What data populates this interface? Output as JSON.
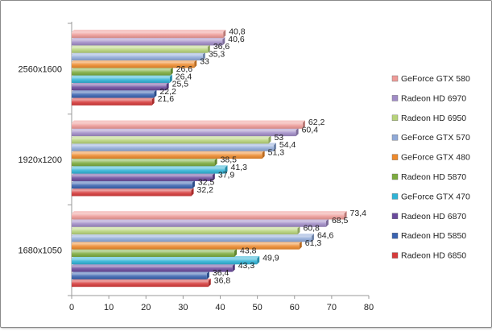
{
  "chart_data": {
    "type": "bar",
    "orientation": "horizontal",
    "title": "",
    "xlabel": "",
    "ylabel": "",
    "categories": [
      "1680x1050",
      "1920x1200",
      "2560x1600"
    ],
    "xlim": [
      0,
      80
    ],
    "xticks": [
      0,
      10,
      20,
      30,
      40,
      50,
      60,
      70,
      80
    ],
    "grid": false,
    "legend_position": "right",
    "series": [
      {
        "name": "Radeon HD 6850",
        "color": "#d63a3a",
        "labels": [
          "36,8",
          "32,2",
          "21,6"
        ],
        "values": [
          36.8,
          32.2,
          21.6
        ]
      },
      {
        "name": "Radeon HD 5850",
        "color": "#3a63b0",
        "labels": [
          "36,4",
          "32,5",
          "22,2"
        ],
        "values": [
          36.4,
          32.5,
          22.2
        ]
      },
      {
        "name": "Radeon HD 6870",
        "color": "#6a4a9c",
        "labels": [
          "43,3",
          "37,9",
          "25,5"
        ],
        "values": [
          43.3,
          37.9,
          25.5
        ]
      },
      {
        "name": "GeForce GTX 470",
        "color": "#2fb3d6",
        "labels": [
          "49,9",
          "41,3",
          "26,4"
        ],
        "values": [
          49.9,
          41.3,
          26.4
        ]
      },
      {
        "name": "Radeon HD 5870",
        "color": "#7cab3e",
        "labels": [
          "43,8",
          "38,5",
          "26,6"
        ],
        "values": [
          43.8,
          38.5,
          26.6
        ]
      },
      {
        "name": "GeForce GTX 480",
        "color": "#ee8a2c",
        "labels": [
          "61,3",
          "51,3",
          "33"
        ],
        "values": [
          61.3,
          51.3,
          33.0
        ]
      },
      {
        "name": "GeForce GTX 570",
        "color": "#8fa9d8",
        "labels": [
          "64,6",
          "54,4",
          "35,3"
        ],
        "values": [
          64.6,
          54.4,
          35.3
        ]
      },
      {
        "name": "Radeon HD 6950",
        "color": "#b7d37a",
        "labels": [
          "60,8",
          "53",
          "36,6"
        ],
        "values": [
          60.8,
          53.0,
          36.6
        ]
      },
      {
        "name": "Radeon HD 6970",
        "color": "#a08bc6",
        "labels": [
          "68,5",
          "60,4",
          "40,6"
        ],
        "values": [
          68.5,
          60.4,
          40.6
        ]
      },
      {
        "name": "GeForce GTX 580",
        "color": "#ee9b98",
        "labels": [
          "73,4",
          "62,2",
          "40,8"
        ],
        "values": [
          73.4,
          62.2,
          40.8
        ]
      }
    ]
  }
}
